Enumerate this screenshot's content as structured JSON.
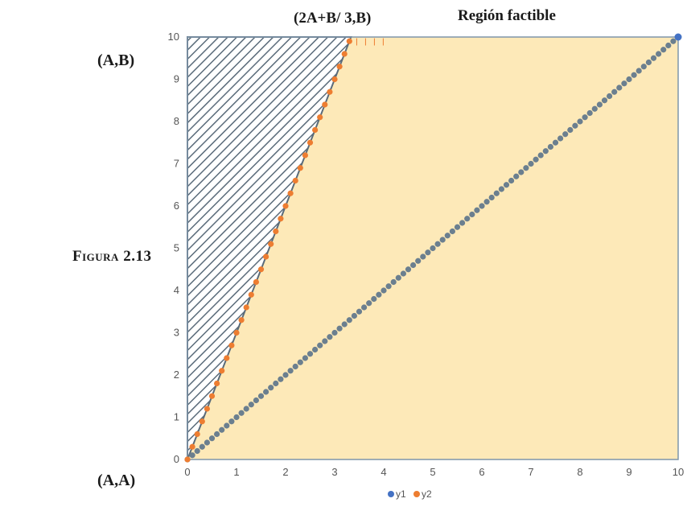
{
  "labels": {
    "figure_prefix": "Figura",
    "figure_number": "2.13",
    "corner_top_left": "(A,B)",
    "corner_bottom_left": "(A,A)",
    "vertex": "(2A+B/ 3,B)",
    "region": "Región factible"
  },
  "chart_data": {
    "type": "scatter",
    "title": "",
    "xlabel": "",
    "ylabel": "",
    "xlim": [
      0,
      10
    ],
    "ylim": [
      0,
      10
    ],
    "x_ticks": [
      0,
      1,
      2,
      3,
      4,
      5,
      6,
      7,
      8,
      9,
      10
    ],
    "y_ticks": [
      0,
      1,
      2,
      3,
      4,
      5,
      6,
      7,
      8,
      9,
      10
    ],
    "grid": false,
    "legend_placement": "bottom-center",
    "shaded_region": {
      "vertices": [
        [
          0,
          0
        ],
        [
          10,
          10
        ],
        [
          10,
          0
        ]
      ],
      "color": "#fde9b8"
    },
    "hatched_region": {
      "vertices": [
        [
          0,
          0
        ],
        [
          0,
          10
        ],
        [
          3.3333,
          10
        ]
      ],
      "color": "#5a6b7a"
    },
    "series": [
      {
        "name": "y1",
        "relation": "y = x",
        "x_start": 0,
        "x_end": 10,
        "step": 0.1,
        "color": "#6b7f8f",
        "marker_color": "#4472c4"
      },
      {
        "name": "y2",
        "relation": "y = 3x",
        "x_start": 0,
        "x_end": 3.3333,
        "step": 0.1,
        "color": "#ed7d31"
      }
    ]
  },
  "legend": [
    {
      "name": "y1",
      "color": "#4472c4"
    },
    {
      "name": "y2",
      "color": "#ed7d31"
    }
  ]
}
